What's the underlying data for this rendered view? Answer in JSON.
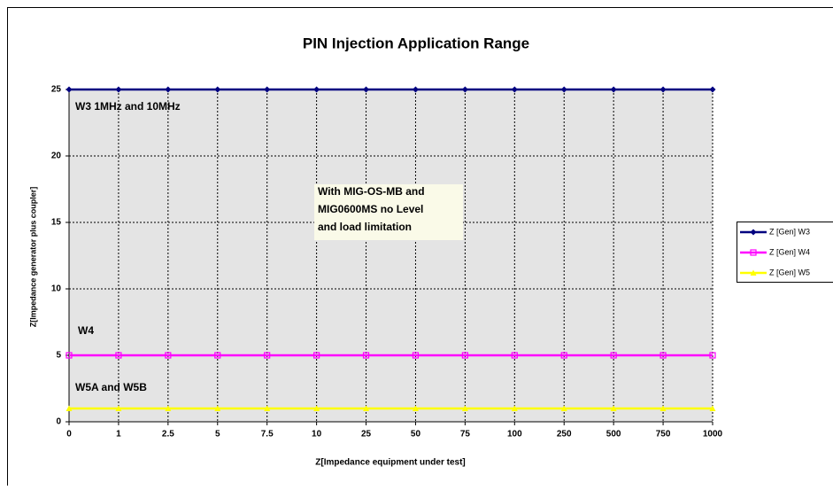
{
  "chart_data": {
    "type": "line",
    "title": "PIN Injection Application Range",
    "x_label": "Z[Impedance equipment under test]",
    "y_label": "Z[Impedance generator plus coupler]",
    "categories": [
      "0",
      "1",
      "2.5",
      "5",
      "7.5",
      "10",
      "25",
      "50",
      "75",
      "100",
      "250",
      "500",
      "750",
      "1000"
    ],
    "series": [
      {
        "name": "Z [Gen] W3",
        "color": "#000080",
        "marker": "diamond",
        "values": [
          25,
          25,
          25,
          25,
          25,
          25,
          25,
          25,
          25,
          25,
          25,
          25,
          25,
          25
        ]
      },
      {
        "name": "Z [Gen] W4",
        "color": "#ff00ff",
        "marker": "square",
        "values": [
          5,
          5,
          5,
          5,
          5,
          5,
          5,
          5,
          5,
          5,
          5,
          5,
          5,
          5
        ]
      },
      {
        "name": "Z [Gen] W5",
        "color": "#ffff00",
        "marker": "triangle",
        "values": [
          1,
          1,
          1,
          1,
          1,
          1,
          1,
          1,
          1,
          1,
          1,
          1,
          1,
          1
        ]
      }
    ],
    "ylim": [
      0,
      25
    ],
    "yticks": [
      0,
      5,
      10,
      15,
      20,
      25
    ],
    "grid": true,
    "legend": "right",
    "annotations": [
      {
        "lines": [
          "W3 1MHz and 10MHz"
        ]
      },
      {
        "lines": [
          "With MIG-OS-MB and",
          "MIG0600MS no Level",
          "and load limitation"
        ]
      },
      {
        "lines": [
          "W4"
        ]
      },
      {
        "lines": [
          "W5A and W5B"
        ]
      }
    ]
  }
}
